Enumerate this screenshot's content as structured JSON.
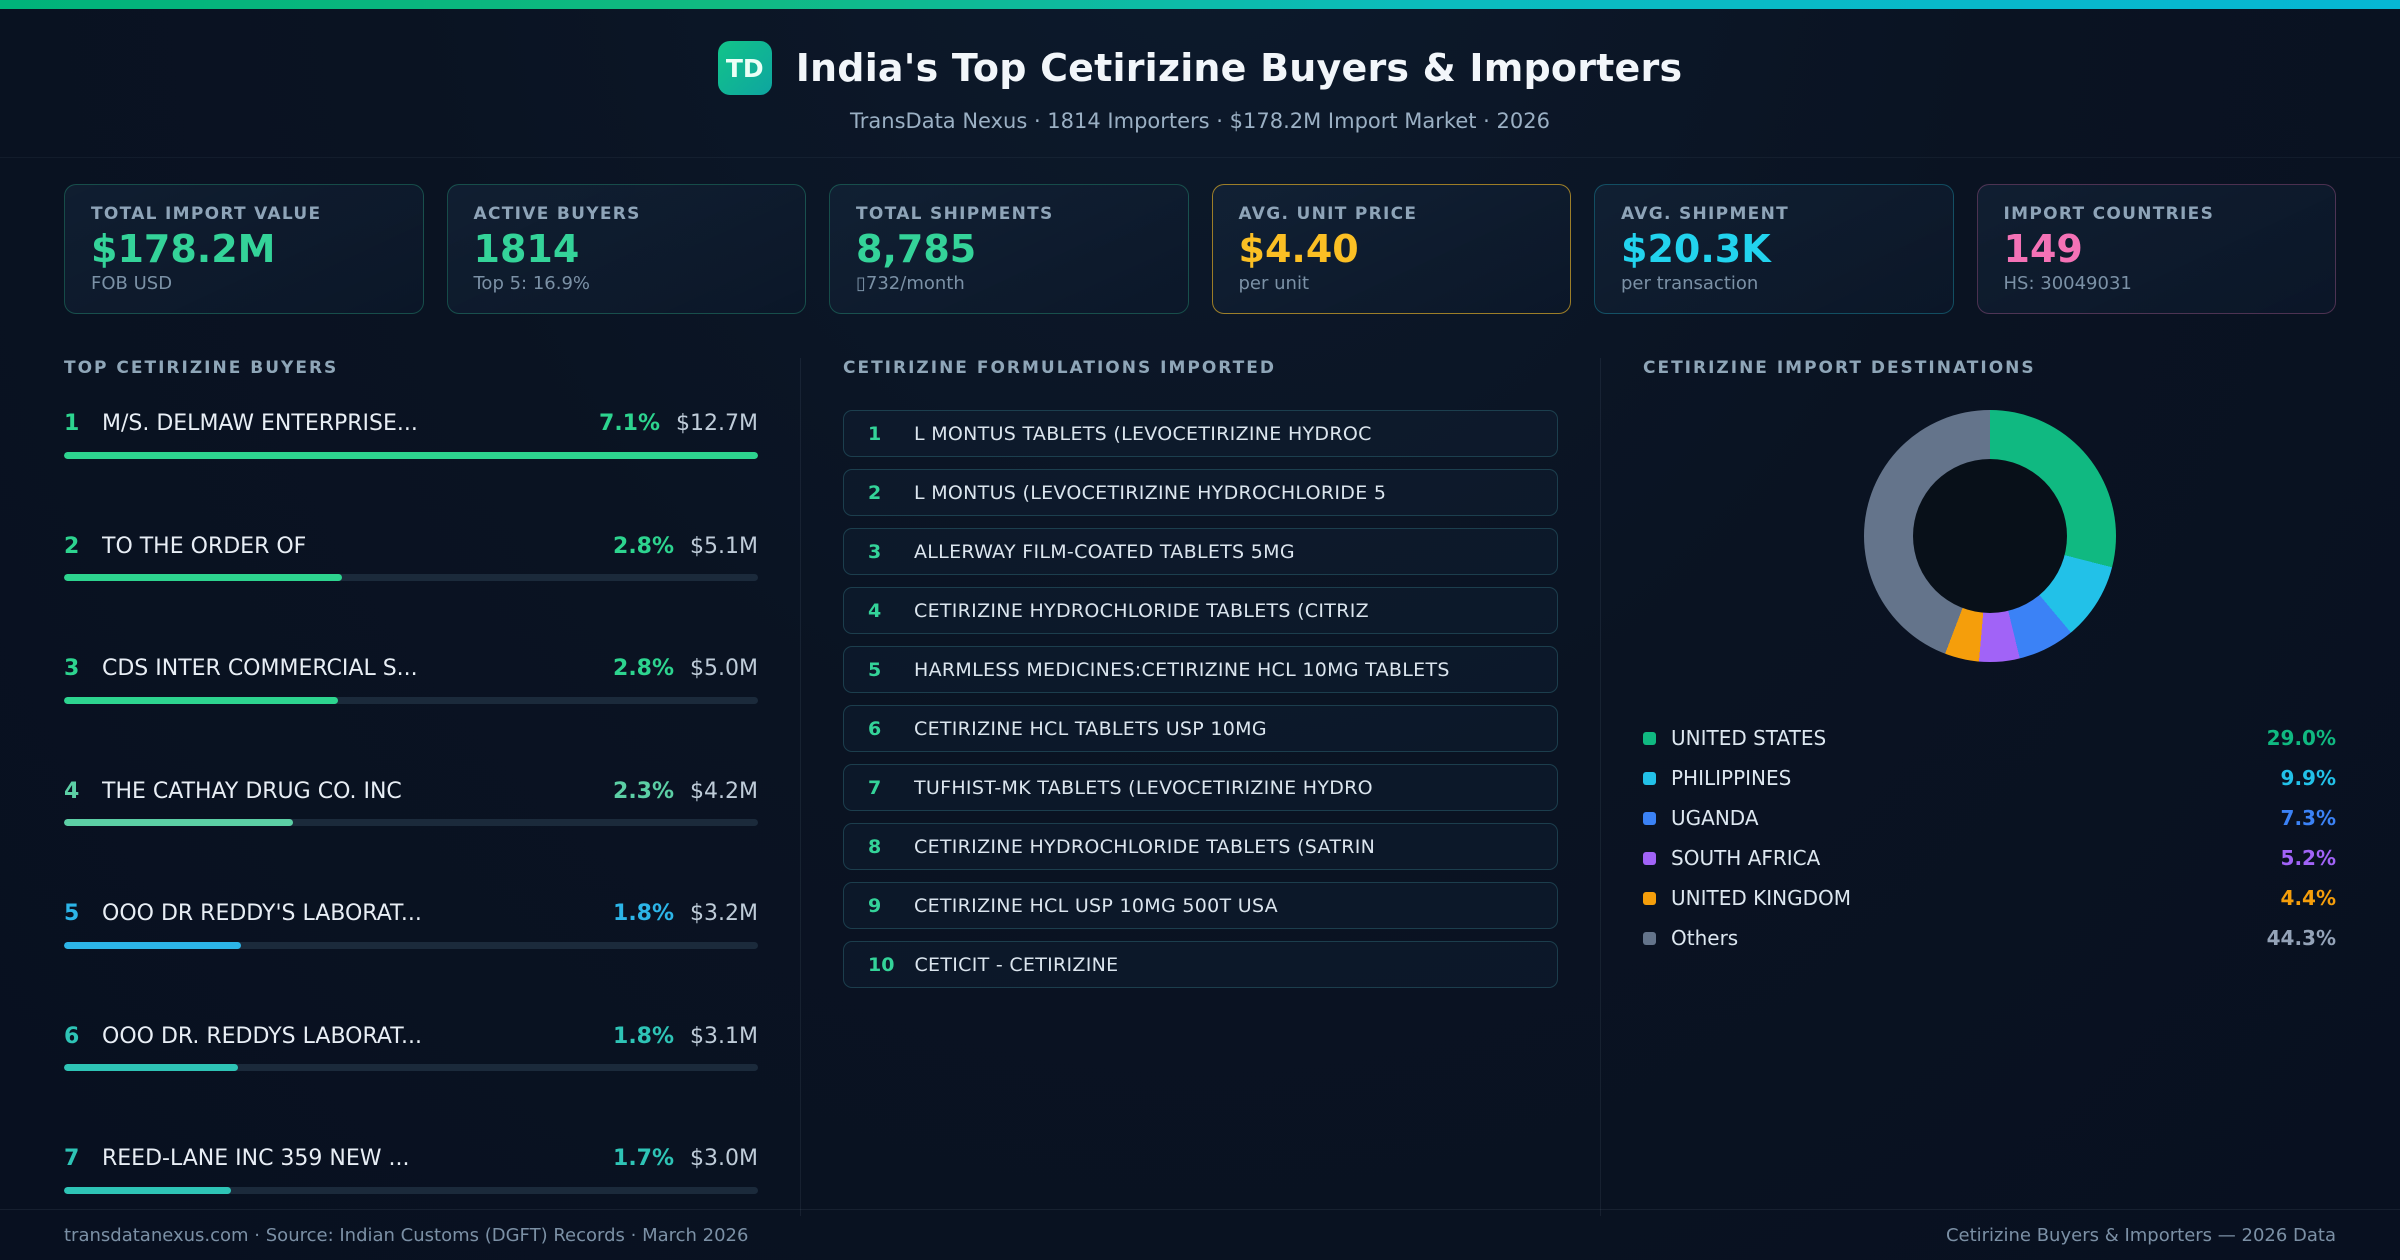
{
  "header": {
    "logo": "TD",
    "title": "India's Top Cetirizine Buyers & Importers",
    "subtitle": "TransData Nexus · 1814 Importers · $178.2M Import Market · 2026"
  },
  "stats": [
    {
      "label": "TOTAL IMPORT VALUE",
      "value": "$178.2M",
      "sub": "FOB USD",
      "color": "#34d399"
    },
    {
      "label": "ACTIVE BUYERS",
      "value": "1814",
      "sub": "Top 5: 16.9%",
      "color": "#34d399"
    },
    {
      "label": "TOTAL SHIPMENTS",
      "value": "8,785",
      "sub": "▯732/month",
      "color": "#34d399"
    },
    {
      "label": "AVG. UNIT PRICE",
      "value": "$4.40",
      "sub": "per unit",
      "color": "#fbbf24",
      "accent": true
    },
    {
      "label": "AVG. SHIPMENT",
      "value": "$20.3K",
      "sub": "per transaction",
      "color": "#22d3ee"
    },
    {
      "label": "IMPORT COUNTRIES",
      "value": "149",
      "sub": "HS: 30049031",
      "color": "#f472b6"
    }
  ],
  "buyers": {
    "heading": "TOP CETIRIZINE BUYERS",
    "items": [
      {
        "rank": "1",
        "name": "M/S. DELMAW ENTERPRISE...",
        "pct": "7.1%",
        "value": "$12.7M",
        "bar_pct": 100,
        "color": "#2dd48f"
      },
      {
        "rank": "2",
        "name": "TO THE ORDER OF",
        "pct": "2.8%",
        "value": "$5.1M",
        "bar_pct": 40,
        "color": "#2dd48f"
      },
      {
        "rank": "3",
        "name": "CDS INTER COMMERCIAL S...",
        "pct": "2.8%",
        "value": "$5.0M",
        "bar_pct": 39.5,
        "color": "#2dd48f"
      },
      {
        "rank": "4",
        "name": "THE CATHAY DRUG CO. INC",
        "pct": "2.3%",
        "value": "$4.2M",
        "bar_pct": 33,
        "color": "#5ccfa5"
      },
      {
        "rank": "5",
        "name": "OOO DR REDDY'S LABORAT...",
        "pct": "1.8%",
        "value": "$3.2M",
        "bar_pct": 25.5,
        "color": "#2cb5e8"
      },
      {
        "rank": "6",
        "name": "OOO DR. REDDYS LABORAT...",
        "pct": "1.8%",
        "value": "$3.1M",
        "bar_pct": 25,
        "color": "#2ec4b6"
      },
      {
        "rank": "7",
        "name": "REED-LANE INC 359 NEW ...",
        "pct": "1.7%",
        "value": "$3.0M",
        "bar_pct": 24,
        "color": "#2ec4b6"
      }
    ]
  },
  "formulations": {
    "heading": "CETIRIZINE FORMULATIONS IMPORTED",
    "num_color": "#34d399",
    "items": [
      {
        "num": "1",
        "name": "L MONTUS TABLETS (LEVOCETIRIZINE HYDROC"
      },
      {
        "num": "2",
        "name": "L MONTUS (LEVOCETIRIZINE HYDROCHLORIDE 5"
      },
      {
        "num": "3",
        "name": "ALLERWAY FILM-COATED TABLETS 5MG"
      },
      {
        "num": "4",
        "name": "CETIRIZINE HYDROCHLORIDE TABLETS (CITRIZ"
      },
      {
        "num": "5",
        "name": "HARMLESS MEDICINES:CETIRIZINE HCL 10MG TABLETS"
      },
      {
        "num": "6",
        "name": "CETIRIZINE HCL TABLETS USP 10MG"
      },
      {
        "num": "7",
        "name": "TUFHIST-MK TABLETS (LEVOCETIRIZINE HYDRO"
      },
      {
        "num": "8",
        "name": "CETIRIZINE HYDROCHLORIDE TABLETS (SATRIN"
      },
      {
        "num": "9",
        "name": "CETIRIZINE HCL USP 10MG 500T USA"
      },
      {
        "num": "10",
        "name": "CETICIT - CETIRIZINE"
      }
    ]
  },
  "destinations": {
    "heading": "CETIRIZINE IMPORT DESTINATIONS",
    "segments": [
      {
        "label": "UNITED STATES",
        "pct": 29.0,
        "pct_label": "29.0%",
        "color": "#10b981"
      },
      {
        "label": "PHILIPPINES",
        "pct": 9.9,
        "pct_label": "9.9%",
        "color": "#22c1e8"
      },
      {
        "label": "UGANDA",
        "pct": 7.3,
        "pct_label": "7.3%",
        "color": "#3b82f6"
      },
      {
        "label": "SOUTH AFRICA",
        "pct": 5.2,
        "pct_label": "5.2%",
        "color": "#a163f7"
      },
      {
        "label": "UNITED KINGDOM",
        "pct": 4.4,
        "pct_label": "4.4%",
        "color": "#f59e0b"
      },
      {
        "label": "Others",
        "pct": 44.3,
        "pct_label": "44.3%",
        "color": "#64748b",
        "pct_color": "#94a3b8"
      }
    ]
  },
  "footer": {
    "left": "transdatanexus.com · Source: Indian Customs (DGFT) Records · March 2026",
    "right": "Cetirizine Buyers & Importers — 2026 Data"
  },
  "chart_data": [
    {
      "type": "bar",
      "title": "TOP CETIRIZINE BUYERS",
      "categories": [
        "M/S. DELMAW ENTERPRISE...",
        "TO THE ORDER OF",
        "CDS INTER COMMERCIAL S...",
        "THE CATHAY DRUG CO. INC",
        "OOO DR REDDY'S LABORAT...",
        "OOO DR. REDDYS LABORAT...",
        "REED-LANE INC 359 NEW ..."
      ],
      "series": [
        {
          "name": "share_pct",
          "values": [
            7.1,
            2.8,
            2.8,
            2.3,
            1.8,
            1.8,
            1.7
          ]
        },
        {
          "name": "import_value_usd",
          "values": [
            "$12.7M",
            "$5.1M",
            "$5.0M",
            "$4.2M",
            "$3.2M",
            "$3.1M",
            "$3.0M"
          ]
        }
      ],
      "orientation": "horizontal",
      "xlabel": "",
      "ylabel": "",
      "grid": false,
      "legend_position": "none"
    },
    {
      "type": "pie",
      "title": "CETIRIZINE IMPORT DESTINATIONS",
      "categories": [
        "UNITED STATES",
        "PHILIPPINES",
        "UGANDA",
        "SOUTH AFRICA",
        "UNITED KINGDOM",
        "Others"
      ],
      "values": [
        29.0,
        9.9,
        7.3,
        5.2,
        4.4,
        44.3
      ],
      "donut": true,
      "legend_position": "below"
    }
  ]
}
